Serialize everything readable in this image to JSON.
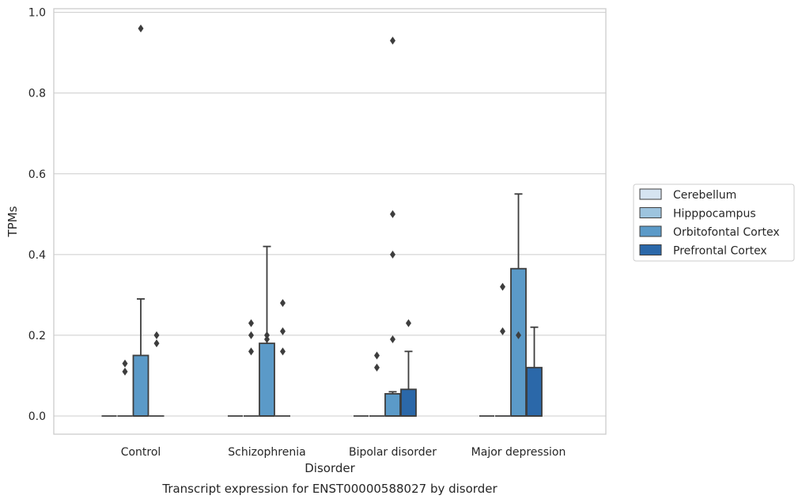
{
  "chart_data": {
    "type": "box",
    "title": "",
    "caption": "Transcript expression for ENST00000588027 by disorder",
    "xlabel": "Disorder",
    "ylabel": "TPMs",
    "ylim": [
      -0.045,
      1.01
    ],
    "yticks": [
      0.0,
      0.2,
      0.4,
      0.6,
      0.8,
      1.0
    ],
    "ytick_labels": [
      "0.0",
      "0.2",
      "0.4",
      "0.6",
      "0.8",
      "1.0"
    ],
    "grid": "horizontal",
    "legend_position": "right",
    "categories": [
      "Control",
      "Schizophrenia",
      "Bipolar disorder",
      "Major depression"
    ],
    "series": [
      {
        "name": "Cerebellum",
        "color": "#d6e4f1",
        "boxes": [
          {
            "q1": 0,
            "median": 0,
            "q3": 0,
            "whisker_low": 0,
            "whisker_high": 0,
            "outliers": []
          },
          {
            "q1": 0,
            "median": 0,
            "q3": 0,
            "whisker_low": 0,
            "whisker_high": 0,
            "outliers": []
          },
          {
            "q1": 0,
            "median": 0,
            "q3": 0,
            "whisker_low": 0,
            "whisker_high": 0,
            "outliers": []
          },
          {
            "q1": 0,
            "median": 0,
            "q3": 0,
            "whisker_low": 0,
            "whisker_high": 0,
            "outliers": []
          }
        ]
      },
      {
        "name": "Hipppocampus",
        "color": "#9dc4de",
        "boxes": [
          {
            "q1": 0,
            "median": 0,
            "q3": 0,
            "whisker_low": 0,
            "whisker_high": 0,
            "outliers": [
              0.11,
              0.13
            ]
          },
          {
            "q1": 0,
            "median": 0,
            "q3": 0,
            "whisker_low": 0,
            "whisker_high": 0,
            "outliers": [
              0.16,
              0.2,
              0.23
            ]
          },
          {
            "q1": 0,
            "median": 0,
            "q3": 0,
            "whisker_low": 0,
            "whisker_high": 0,
            "outliers": [
              0.12,
              0.15
            ]
          },
          {
            "q1": 0,
            "median": 0,
            "q3": 0,
            "whisker_low": 0,
            "whisker_high": 0,
            "outliers": [
              0.21,
              0.32
            ]
          }
        ]
      },
      {
        "name": "Orbitofontal Cortex",
        "color": "#5b9ac8",
        "boxes": [
          {
            "q1": 0,
            "median": 0,
            "q3": 0.15,
            "whisker_low": 0,
            "whisker_high": 0.29,
            "outliers": [
              0.96
            ]
          },
          {
            "q1": 0,
            "median": 0,
            "q3": 0.18,
            "whisker_low": 0,
            "whisker_high": 0.42,
            "outliers": [
              0.19,
              0.2
            ]
          },
          {
            "q1": 0,
            "median": 0,
            "q3": 0.055,
            "whisker_low": 0,
            "whisker_high": 0.06,
            "outliers": [
              0.19,
              0.4,
              0.5,
              0.93
            ]
          },
          {
            "q1": 0,
            "median": 0,
            "q3": 0.365,
            "whisker_low": 0,
            "whisker_high": 0.55,
            "outliers": [
              0.2
            ]
          }
        ]
      },
      {
        "name": "Prefrontal Cortex",
        "color": "#2b68a9",
        "boxes": [
          {
            "q1": 0,
            "median": 0,
            "q3": 0,
            "whisker_low": 0,
            "whisker_high": 0,
            "outliers": [
              0.18,
              0.2
            ]
          },
          {
            "q1": 0,
            "median": 0,
            "q3": 0,
            "whisker_low": 0,
            "whisker_high": 0,
            "outliers": [
              0.16,
              0.21,
              0.28
            ]
          },
          {
            "q1": 0,
            "median": 0,
            "q3": 0.066,
            "whisker_low": 0,
            "whisker_high": 0.16,
            "outliers": [
              0.23
            ]
          },
          {
            "q1": 0,
            "median": 0,
            "q3": 0.12,
            "whisker_low": 0,
            "whisker_high": 0.22,
            "outliers": []
          }
        ]
      }
    ]
  }
}
